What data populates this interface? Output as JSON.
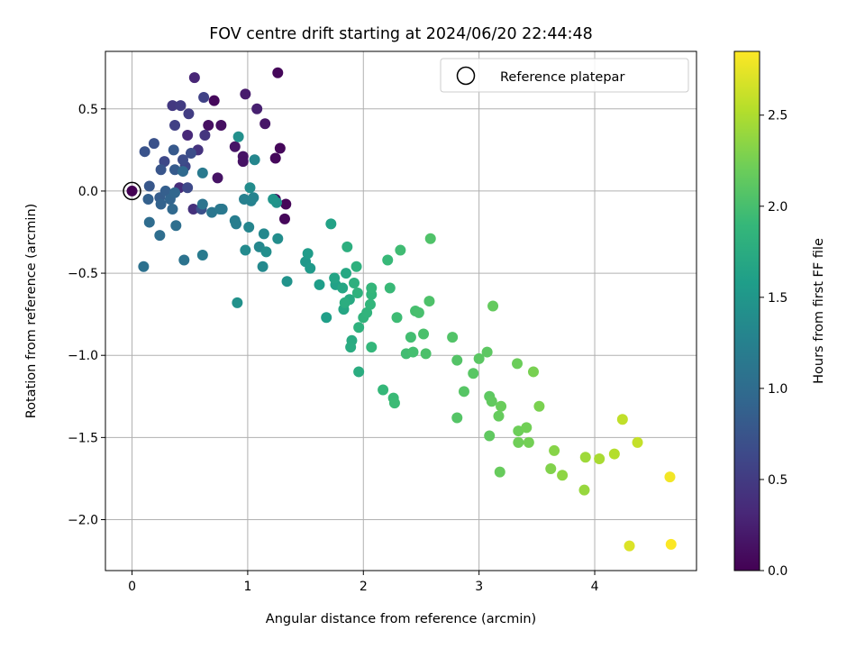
{
  "chart_data": {
    "type": "scatter",
    "title": "FOV centre drift starting at 2024/06/20 22:44:48",
    "xlabel": "Angular distance from reference (arcmin)",
    "ylabel": "Rotation from reference (arcmin)",
    "xlim": [
      -0.23,
      4.88
    ],
    "ylim": [
      -2.31,
      0.85
    ],
    "xticks": [
      0,
      1,
      2,
      3,
      4
    ],
    "xtick_labels": [
      "0",
      "1",
      "2",
      "3",
      "4"
    ],
    "yticks": [
      0.5,
      0.0,
      -0.5,
      -1.0,
      -1.5,
      -2.0
    ],
    "ytick_labels": [
      "0.5",
      "0.0",
      "−0.5",
      "−1.0",
      "−1.5",
      "−2.0"
    ],
    "grid": true,
    "legend": {
      "placement": "top-right",
      "entries": [
        "Reference platepar"
      ]
    },
    "reference_point": {
      "x": 0.0,
      "y": 0.0
    },
    "colorbar": {
      "label": "Hours from first FF file",
      "colormap": "viridis",
      "range": [
        0.0,
        2.85
      ],
      "ticks": [
        0.0,
        0.5,
        1.0,
        1.5,
        2.0,
        2.5
      ],
      "tick_labels": [
        "0.0",
        "0.5",
        "1.0",
        "1.5",
        "2.0",
        "2.5"
      ],
      "colors": [
        "#440154",
        "#482878",
        "#3e4989",
        "#31688e",
        "#26828e",
        "#1f9e89",
        "#35b779",
        "#6ece58",
        "#b5de2b",
        "#fde725"
      ]
    },
    "points": [
      [
        0.0,
        0.0,
        0.0
      ],
      [
        1.26,
        0.72,
        0.05
      ],
      [
        0.71,
        0.55,
        0.06
      ],
      [
        1.28,
        0.26,
        0.05
      ],
      [
        1.24,
        0.2,
        0.06
      ],
      [
        1.33,
        -0.08,
        0.04
      ],
      [
        1.32,
        -0.17,
        0.05
      ],
      [
        1.24,
        -0.05,
        0.07
      ],
      [
        0.66,
        0.4,
        0.12
      ],
      [
        0.77,
        0.4,
        0.12
      ],
      [
        0.96,
        0.21,
        0.15
      ],
      [
        0.96,
        0.18,
        0.14
      ],
      [
        0.89,
        0.27,
        0.16
      ],
      [
        0.74,
        0.08,
        0.15
      ],
      [
        1.15,
        0.41,
        0.17
      ],
      [
        0.98,
        0.59,
        0.21
      ],
      [
        1.08,
        0.5,
        0.25
      ],
      [
        0.54,
        0.69,
        0.3
      ],
      [
        0.48,
        0.34,
        0.33
      ],
      [
        0.41,
        0.02,
        0.36
      ],
      [
        0.53,
        -0.11,
        0.4
      ],
      [
        0.57,
        0.25,
        0.42
      ],
      [
        0.63,
        0.34,
        0.45
      ],
      [
        0.35,
        0.52,
        0.47
      ],
      [
        0.42,
        0.52,
        0.5
      ],
      [
        0.49,
        0.47,
        0.52
      ],
      [
        0.37,
        0.4,
        0.55
      ],
      [
        0.62,
        0.57,
        0.57
      ],
      [
        0.46,
        0.15,
        0.6
      ],
      [
        0.28,
        0.18,
        0.62
      ],
      [
        0.48,
        0.02,
        0.64
      ],
      [
        0.44,
        0.19,
        0.66
      ],
      [
        0.51,
        0.23,
        0.68
      ],
      [
        0.6,
        -0.11,
        0.7
      ],
      [
        0.19,
        0.29,
        0.72
      ],
      [
        0.11,
        0.24,
        0.74
      ],
      [
        0.25,
        0.13,
        0.76
      ],
      [
        0.15,
        0.03,
        0.78
      ],
      [
        0.36,
        0.25,
        0.8
      ],
      [
        0.37,
        0.13,
        0.82
      ],
      [
        0.24,
        -0.04,
        0.84
      ],
      [
        0.29,
        0.0,
        0.86
      ],
      [
        0.14,
        -0.05,
        0.88
      ],
      [
        0.25,
        -0.08,
        0.9
      ],
      [
        0.33,
        -0.05,
        0.92
      ],
      [
        0.37,
        -0.01,
        0.94
      ],
      [
        0.35,
        -0.11,
        0.96
      ],
      [
        0.44,
        0.12,
        0.98
      ],
      [
        0.15,
        -0.19,
        1.0
      ],
      [
        0.24,
        -0.27,
        1.02
      ],
      [
        0.38,
        -0.21,
        1.04
      ],
      [
        0.1,
        -0.46,
        1.06
      ],
      [
        0.45,
        -0.42,
        1.08
      ],
      [
        0.61,
        -0.08,
        1.1
      ],
      [
        0.69,
        -0.13,
        1.12
      ],
      [
        0.76,
        -0.11,
        1.14
      ],
      [
        0.78,
        -0.11,
        1.15
      ],
      [
        0.61,
        0.11,
        1.17
      ],
      [
        0.61,
        -0.39,
        1.18
      ],
      [
        0.89,
        -0.18,
        1.2
      ],
      [
        0.9,
        -0.2,
        1.22
      ],
      [
        0.97,
        -0.05,
        1.24
      ],
      [
        1.03,
        -0.06,
        1.26
      ],
      [
        1.05,
        -0.04,
        1.28
      ],
      [
        1.01,
        -0.22,
        1.3
      ],
      [
        1.06,
        0.19,
        1.31
      ],
      [
        1.1,
        -0.34,
        1.32
      ],
      [
        1.14,
        -0.26,
        1.34
      ],
      [
        1.13,
        -0.46,
        1.35
      ],
      [
        0.98,
        -0.36,
        1.36
      ],
      [
        1.02,
        0.02,
        1.38
      ],
      [
        1.26,
        -0.29,
        1.39
      ],
      [
        1.16,
        -0.37,
        1.4
      ],
      [
        0.92,
        0.33,
        1.42
      ],
      [
        0.91,
        -0.68,
        1.44
      ],
      [
        1.25,
        -0.07,
        1.45
      ],
      [
        1.34,
        -0.55,
        1.46
      ],
      [
        1.22,
        -0.05,
        1.48
      ],
      [
        1.5,
        -0.43,
        1.52
      ],
      [
        1.54,
        -0.47,
        1.54
      ],
      [
        1.52,
        -0.38,
        1.56
      ],
      [
        1.62,
        -0.57,
        1.58
      ],
      [
        1.68,
        -0.77,
        1.6
      ],
      [
        1.76,
        -0.57,
        1.62
      ],
      [
        1.72,
        -0.2,
        1.64
      ],
      [
        1.75,
        -0.53,
        1.66
      ],
      [
        1.82,
        -0.59,
        1.68
      ],
      [
        1.83,
        -0.72,
        1.69
      ],
      [
        1.85,
        -0.5,
        1.7
      ],
      [
        1.88,
        -0.66,
        1.72
      ],
      [
        1.9,
        -0.91,
        1.74
      ],
      [
        1.89,
        -0.95,
        1.75
      ],
      [
        1.96,
        -1.1,
        1.76
      ],
      [
        1.84,
        -0.68,
        1.77
      ],
      [
        1.86,
        -0.34,
        1.78
      ],
      [
        1.92,
        -0.56,
        1.8
      ],
      [
        1.94,
        -0.46,
        1.81
      ],
      [
        1.96,
        -0.83,
        1.82
      ],
      [
        1.95,
        -0.62,
        1.83
      ],
      [
        2.0,
        -0.77,
        1.84
      ],
      [
        2.03,
        -0.74,
        1.85
      ],
      [
        2.07,
        -0.63,
        1.86
      ],
      [
        2.06,
        -0.69,
        1.87
      ],
      [
        2.07,
        -0.59,
        1.88
      ],
      [
        2.07,
        -0.95,
        1.89
      ],
      [
        2.17,
        -1.21,
        1.9
      ],
      [
        2.21,
        -0.42,
        1.91
      ],
      [
        2.23,
        -0.59,
        1.92
      ],
      [
        2.26,
        -1.26,
        1.93
      ],
      [
        2.27,
        -1.29,
        1.94
      ],
      [
        2.29,
        -0.77,
        1.95
      ],
      [
        2.32,
        -0.36,
        1.96
      ],
      [
        2.37,
        -0.99,
        1.97
      ],
      [
        2.41,
        -0.89,
        1.98
      ],
      [
        2.43,
        -0.98,
        1.99
      ],
      [
        2.45,
        -0.73,
        2.0
      ],
      [
        2.48,
        -0.74,
        2.01
      ],
      [
        2.52,
        -0.87,
        2.02
      ],
      [
        2.54,
        -0.99,
        2.03
      ],
      [
        2.57,
        -0.67,
        2.04
      ],
      [
        2.58,
        -0.29,
        2.05
      ],
      [
        2.77,
        -0.89,
        2.06
      ],
      [
        2.81,
        -1.03,
        2.07
      ],
      [
        2.81,
        -1.38,
        2.08
      ],
      [
        2.87,
        -1.22,
        2.09
      ],
      [
        2.95,
        -1.11,
        2.1
      ],
      [
        3.0,
        -1.02,
        2.11
      ],
      [
        3.07,
        -0.98,
        2.12
      ],
      [
        3.09,
        -1.25,
        2.13
      ],
      [
        3.09,
        -1.49,
        2.14
      ],
      [
        3.11,
        -1.28,
        2.15
      ],
      [
        3.12,
        -0.7,
        2.16
      ],
      [
        3.17,
        -1.37,
        2.17
      ],
      [
        3.18,
        -1.71,
        2.18
      ],
      [
        3.19,
        -1.31,
        2.19
      ],
      [
        3.33,
        -1.05,
        2.2
      ],
      [
        3.34,
        -1.46,
        2.21
      ],
      [
        3.34,
        -1.53,
        2.22
      ],
      [
        3.41,
        -1.44,
        2.23
      ],
      [
        3.43,
        -1.53,
        2.24
      ],
      [
        3.47,
        -1.1,
        2.26
      ],
      [
        3.52,
        -1.31,
        2.27
      ],
      [
        3.62,
        -1.69,
        2.3
      ],
      [
        3.65,
        -1.58,
        2.33
      ],
      [
        3.72,
        -1.73,
        2.36
      ],
      [
        3.91,
        -1.82,
        2.4
      ],
      [
        3.92,
        -1.62,
        2.43
      ],
      [
        4.04,
        -1.63,
        2.48
      ],
      [
        4.17,
        -1.6,
        2.53
      ],
      [
        4.24,
        -1.39,
        2.58
      ],
      [
        4.3,
        -2.16,
        2.7
      ],
      [
        4.37,
        -1.53,
        2.6
      ],
      [
        4.65,
        -1.74,
        2.8
      ],
      [
        4.66,
        -2.15,
        2.84
      ]
    ]
  }
}
